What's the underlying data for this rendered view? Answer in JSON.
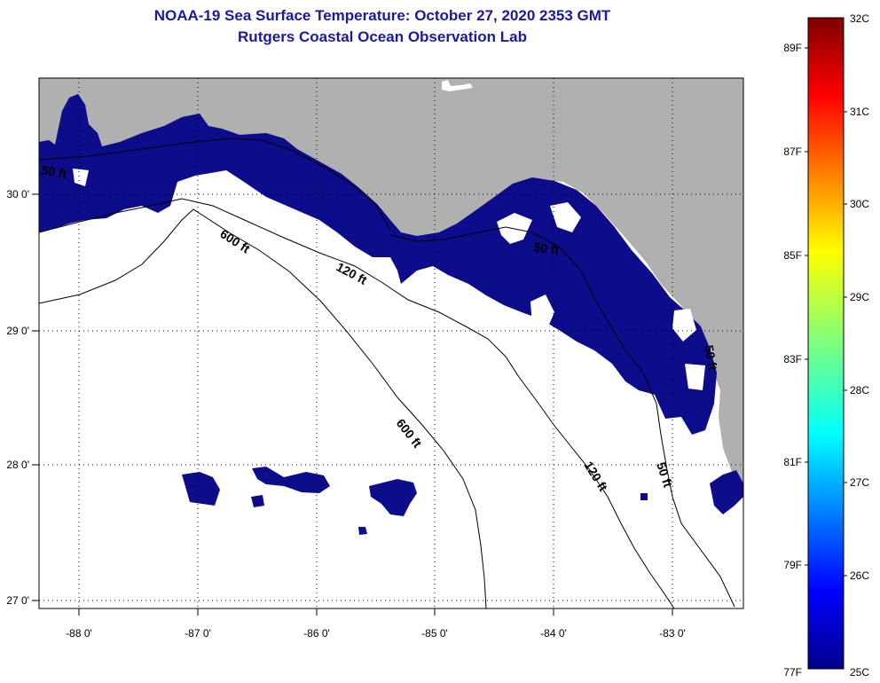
{
  "title": {
    "line1": "NOAA-19 Sea Surface Temperature:  October 27, 2020 2353 GMT",
    "line2": "Rutgers Coastal Ocean Observation Lab"
  },
  "map": {
    "longitude_labels": [
      "-88 0'",
      "-87 0'",
      "-86 0'",
      "-85 0'",
      "-84 0'",
      "-83 0'"
    ],
    "latitude_labels": [
      "30 0'",
      "29 0'",
      "28 0'",
      "27 0'"
    ],
    "contour_labels": [
      "50 ft",
      "600 ft",
      "120 ft",
      "50 ft",
      "600 ft",
      "120 ft",
      "50 ft",
      "50 ft"
    ],
    "colors": {
      "land": "#b0b0b0",
      "water_cold": "#0d0d8c",
      "cloud": "#ffffff"
    }
  },
  "colorbar": {
    "celsius_labels": [
      "32C",
      "31C",
      "30C",
      "29C",
      "28C",
      "27C",
      "26C",
      "25C"
    ],
    "fahrenheit_labels": [
      "89F",
      "87F",
      "85F",
      "83F",
      "81F",
      "79F",
      "77F"
    ]
  }
}
